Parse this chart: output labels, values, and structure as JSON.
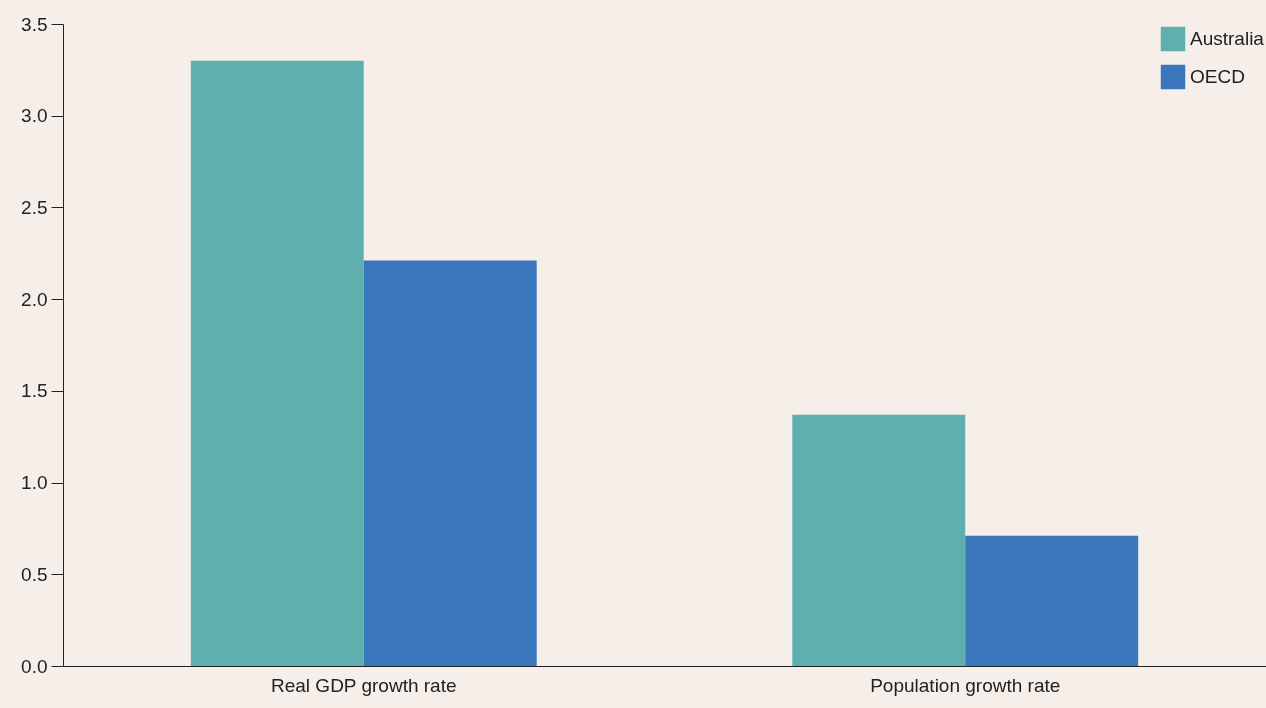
{
  "chart_data": {
    "type": "bar",
    "categories": [
      "Real GDP growth rate",
      "Population growth rate"
    ],
    "series": [
      {
        "name": "Australia",
        "color": "#60afaf",
        "values": [
          3.3,
          1.37
        ]
      },
      {
        "name": "OECD",
        "color": "#3b77bc",
        "values": [
          2.21,
          0.71
        ]
      }
    ],
    "ylim": [
      0,
      3.5
    ],
    "yticks": [
      {
        "value": 0,
        "label": "0.0"
      },
      0.5,
      {
        "value": 1,
        "label": "1.0"
      },
      1.5,
      {
        "value": 2,
        "label": "2.0"
      },
      2.5,
      {
        "value": 3,
        "label": "3.0"
      },
      3.5
    ],
    "grid": false,
    "legend": "top right"
  }
}
